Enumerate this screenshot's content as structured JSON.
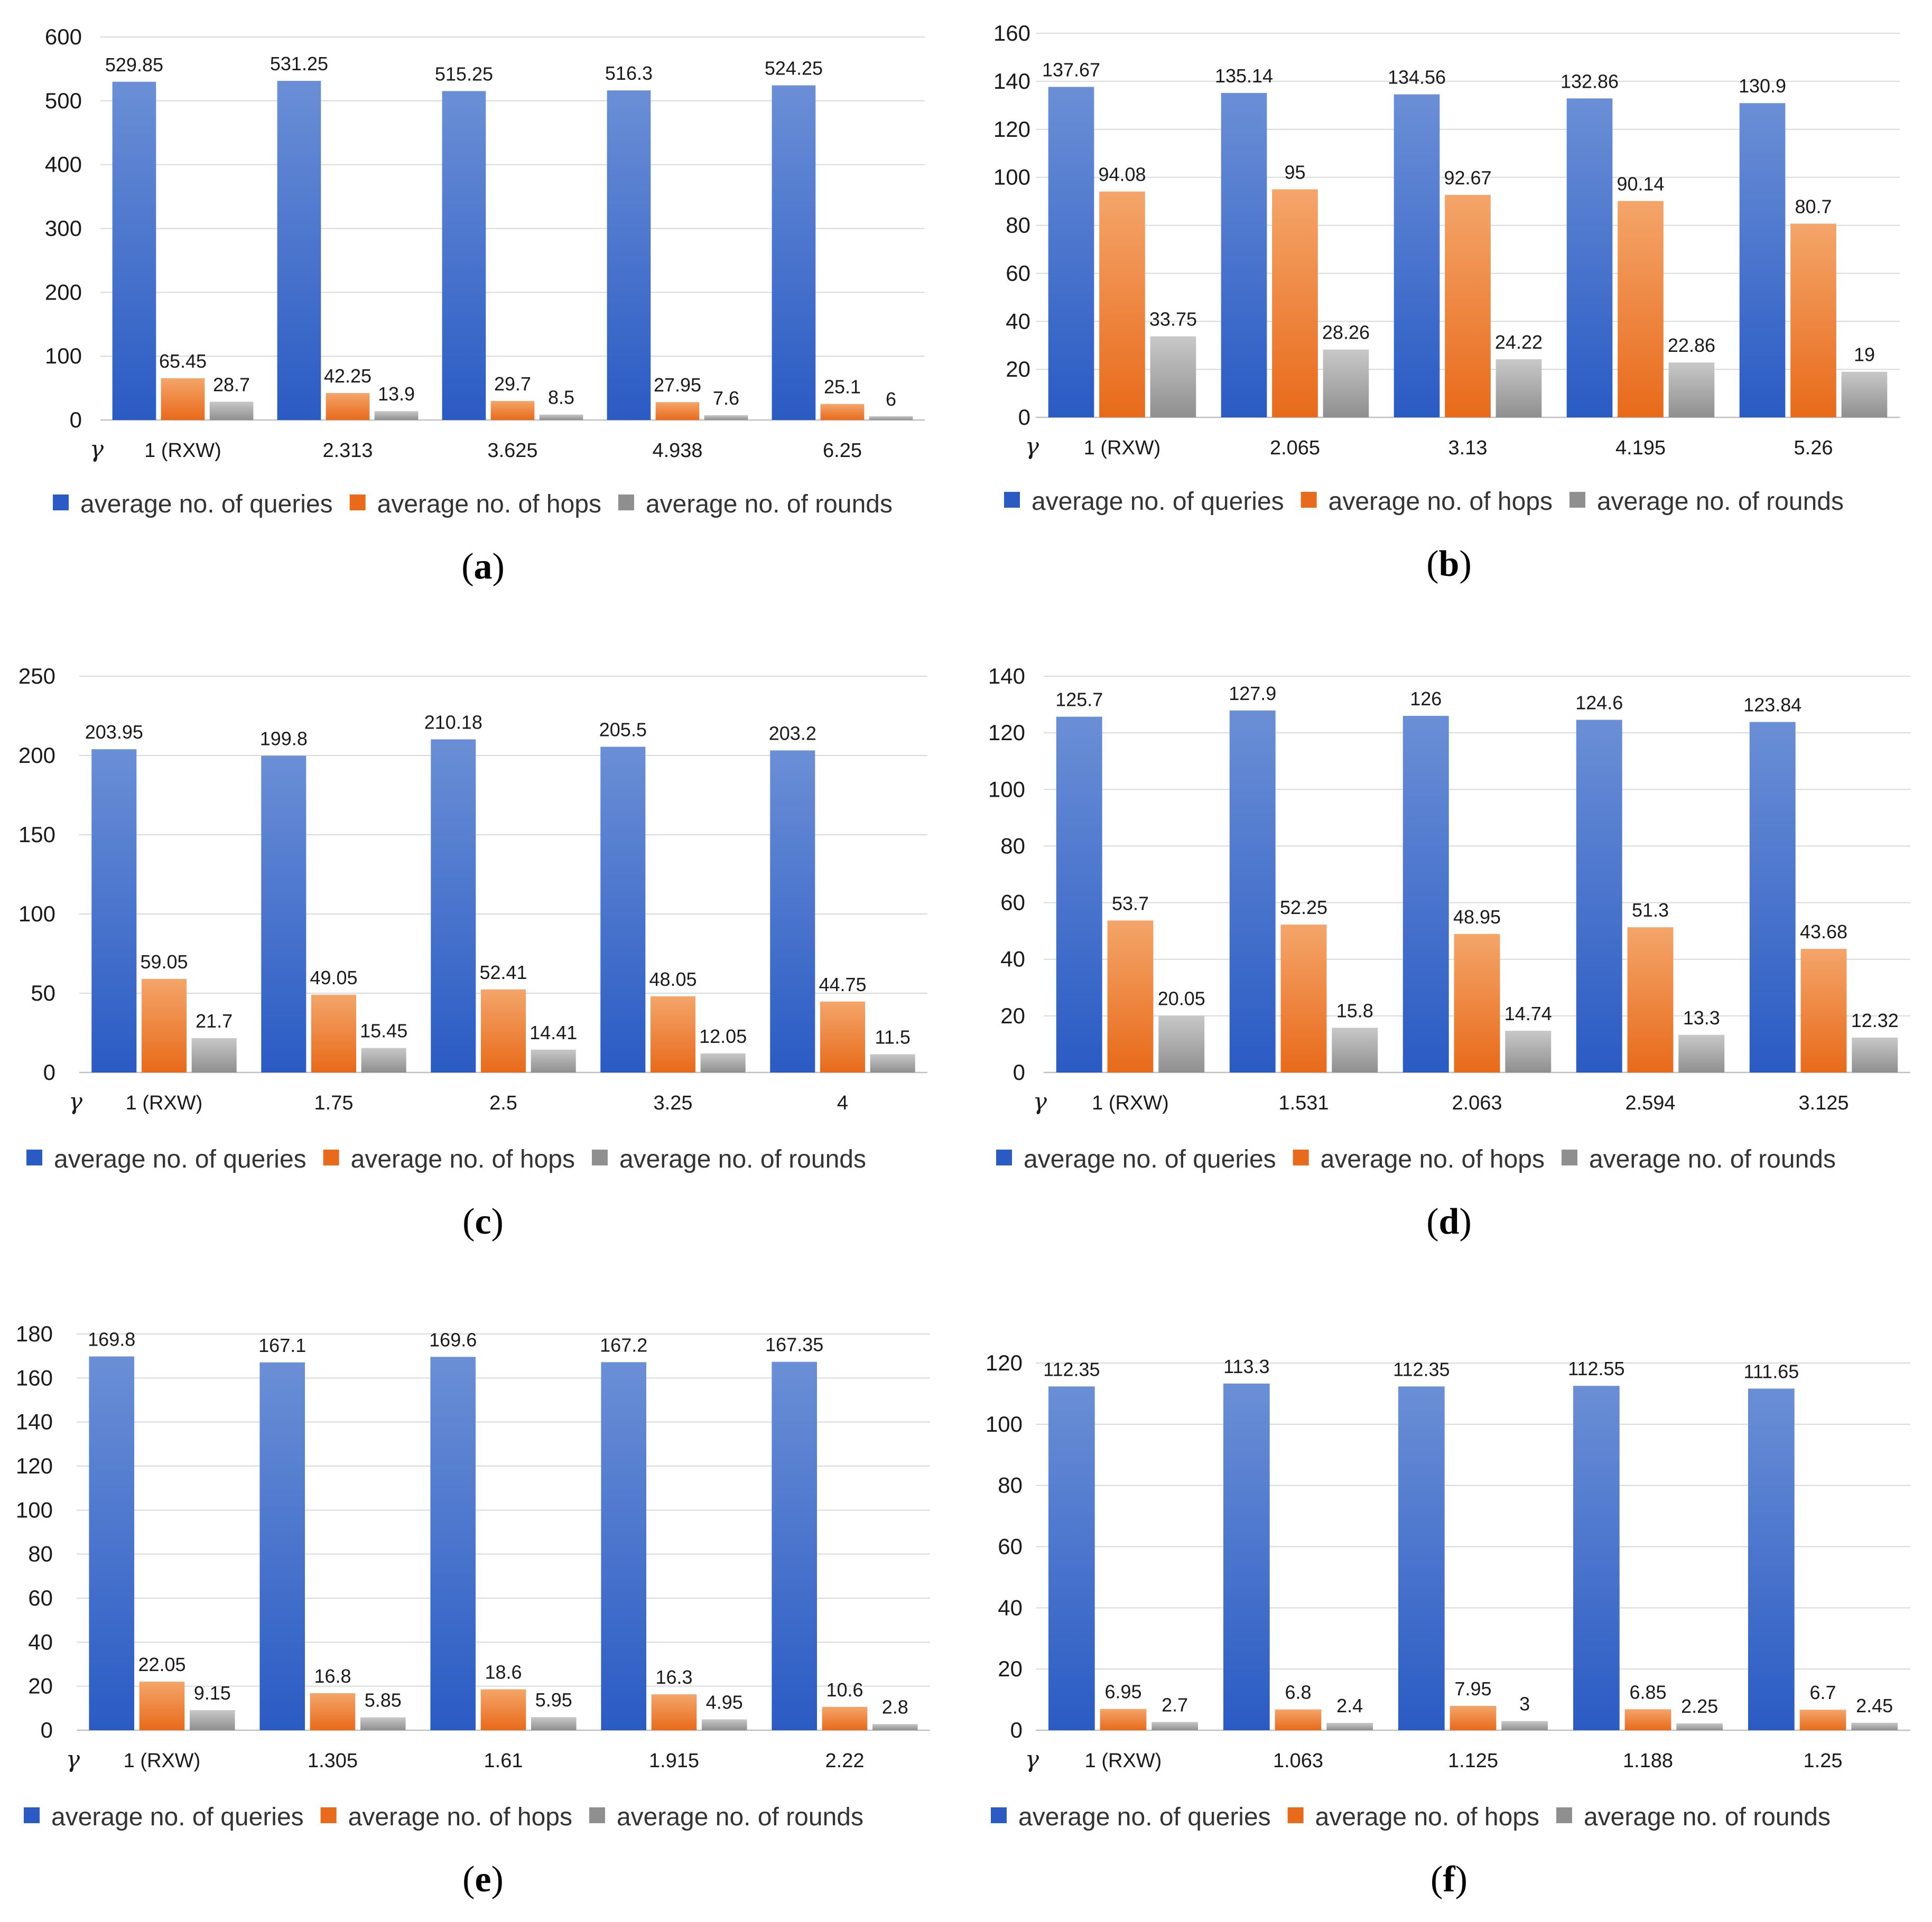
{
  "legend_labels": [
    "average no. of queries",
    "average no. of  hops",
    "average no. of  rounds"
  ],
  "axis_symbol": "γ",
  "colors": {
    "queries_top": "#6b8fd6",
    "queries_bottom": "#2a5bc4",
    "hops_top": "#f4a56a",
    "hops_bottom": "#e86a1a",
    "rounds_top": "#c8c8c8",
    "rounds_bottom": "#8f8f8f"
  },
  "chart_data": [
    {
      "type": "bar",
      "panel": "a",
      "categories": [
        "1 (RXW)",
        "2.313",
        "3.625",
        "4.938",
        "6.25"
      ],
      "yticks": [
        0,
        100,
        200,
        300,
        400,
        500,
        600
      ],
      "ylim": [
        0,
        600
      ],
      "series": [
        {
          "name": "average no. of queries",
          "values": [
            529.85,
            531.25,
            515.25,
            516.3,
            524.25
          ],
          "labels": [
            "529.85",
            "531.25",
            "515.25",
            "516.3",
            "524.25"
          ]
        },
        {
          "name": "average no. of  hops",
          "values": [
            65.45,
            42.25,
            29.7,
            27.95,
            25.1
          ],
          "labels": [
            "65.45",
            "42.25",
            "29.7",
            "27.95",
            "25.1"
          ]
        },
        {
          "name": "average no. of  rounds",
          "values": [
            28.7,
            13.9,
            8.5,
            7.6,
            6
          ],
          "labels": [
            "28.7",
            "13.9",
            "8.5",
            "7.6",
            "6"
          ]
        }
      ]
    },
    {
      "type": "bar",
      "panel": "b",
      "categories": [
        "1 (RXW)",
        "2.065",
        "3.13",
        "4.195",
        "5.26"
      ],
      "yticks": [
        0,
        20,
        40,
        60,
        80,
        100,
        120,
        140,
        160
      ],
      "ylim": [
        0,
        160
      ],
      "series": [
        {
          "name": "average no. of queries",
          "values": [
            137.67,
            135.14,
            134.56,
            132.86,
            130.9
          ],
          "labels": [
            "137.67",
            "135.14",
            "134.56",
            "132.86",
            "130.9"
          ]
        },
        {
          "name": "average no. of  hops",
          "values": [
            94.08,
            95,
            92.67,
            90.14,
            80.7
          ],
          "labels": [
            "94.08",
            "95",
            "92.67",
            "90.14",
            "80.7"
          ]
        },
        {
          "name": "average no. of  rounds",
          "values": [
            33.75,
            28.26,
            24.22,
            22.86,
            19
          ],
          "labels": [
            "33.75",
            "28.26",
            "24.22",
            "22.86",
            "19"
          ]
        }
      ]
    },
    {
      "type": "bar",
      "panel": "c",
      "categories": [
        "1 (RXW)",
        "1.75",
        "2.5",
        "3.25",
        "4"
      ],
      "yticks": [
        0,
        50,
        100,
        150,
        200,
        250
      ],
      "ylim": [
        0,
        250
      ],
      "series": [
        {
          "name": "average no. of queries",
          "values": [
            203.95,
            199.8,
            210.18,
            205.5,
            203.2
          ],
          "labels": [
            "203.95",
            "199.8",
            "210.18",
            "205.5",
            "203.2"
          ]
        },
        {
          "name": "average no. of  hops",
          "values": [
            59.05,
            49.05,
            52.41,
            48.05,
            44.75
          ],
          "labels": [
            "59.05",
            "49.05",
            "52.41",
            "48.05",
            "44.75"
          ]
        },
        {
          "name": "average no. of  rounds",
          "values": [
            21.7,
            15.45,
            14.41,
            12.05,
            11.5
          ],
          "labels": [
            "21.7",
            "15.45",
            "14.41",
            "12.05",
            "11.5"
          ]
        }
      ]
    },
    {
      "type": "bar",
      "panel": "d",
      "categories": [
        "1 (RXW)",
        "1.531",
        "2.063",
        "2.594",
        "3.125"
      ],
      "yticks": [
        0,
        20,
        40,
        60,
        80,
        100,
        120,
        140
      ],
      "ylim": [
        0,
        140
      ],
      "series": [
        {
          "name": "average no. of queries",
          "values": [
            125.7,
            127.9,
            126,
            124.6,
            123.84
          ],
          "labels": [
            "125.7",
            "127.9",
            "126",
            "124.6",
            "123.84"
          ]
        },
        {
          "name": "average no. of  hops",
          "values": [
            53.7,
            52.25,
            48.95,
            51.3,
            43.68
          ],
          "labels": [
            "53.7",
            "52.25",
            "48.95",
            "51.3",
            "43.68"
          ]
        },
        {
          "name": "average no. of  rounds",
          "values": [
            20.05,
            15.8,
            14.74,
            13.3,
            12.32
          ],
          "labels": [
            "20.05",
            "15.8",
            "14.74",
            "13.3",
            "12.32"
          ]
        }
      ]
    },
    {
      "type": "bar",
      "panel": "e",
      "categories": [
        "1 (RXW)",
        "1.305",
        "1.61",
        "1.915",
        "2.22"
      ],
      "yticks": [
        0,
        20,
        40,
        60,
        80,
        100,
        120,
        140,
        160,
        180
      ],
      "ylim": [
        0,
        180
      ],
      "series": [
        {
          "name": "average no. of queries",
          "values": [
            169.8,
            167.1,
            169.6,
            167.2,
            167.35
          ],
          "labels": [
            "169.8",
            "167.1",
            "169.6",
            "167.2",
            "167.35"
          ]
        },
        {
          "name": "average no. of  hops",
          "values": [
            22.05,
            16.8,
            18.6,
            16.3,
            10.6
          ],
          "labels": [
            "22.05",
            "16.8",
            "18.6",
            "16.3",
            "10.6"
          ]
        },
        {
          "name": "average no. of  rounds",
          "values": [
            9.15,
            5.85,
            5.95,
            4.95,
            2.8
          ],
          "labels": [
            "9.15",
            "5.85",
            "5.95",
            "4.95",
            "2.8"
          ]
        }
      ]
    },
    {
      "type": "bar",
      "panel": "f",
      "categories": [
        "1 (RXW)",
        "1.063",
        "1.125",
        "1.188",
        "1.25"
      ],
      "yticks": [
        0,
        20,
        40,
        60,
        80,
        100,
        120
      ],
      "ylim": [
        0,
        120
      ],
      "series": [
        {
          "name": "average no. of queries",
          "values": [
            112.35,
            113.3,
            112.35,
            112.55,
            111.65
          ],
          "labels": [
            "112.35",
            "113.3",
            "112.35",
            "112.55",
            "111.65"
          ]
        },
        {
          "name": "average no. of  hops",
          "values": [
            6.95,
            6.8,
            7.95,
            6.85,
            6.7
          ],
          "labels": [
            "6.95",
            "6.8",
            "7.95",
            "6.85",
            "6.7"
          ]
        },
        {
          "name": "average no. of  rounds",
          "values": [
            2.7,
            2.4,
            3,
            2.25,
            2.45
          ],
          "labels": [
            "2.7",
            "2.4",
            "3",
            "2.25",
            "2.45"
          ]
        }
      ]
    }
  ]
}
